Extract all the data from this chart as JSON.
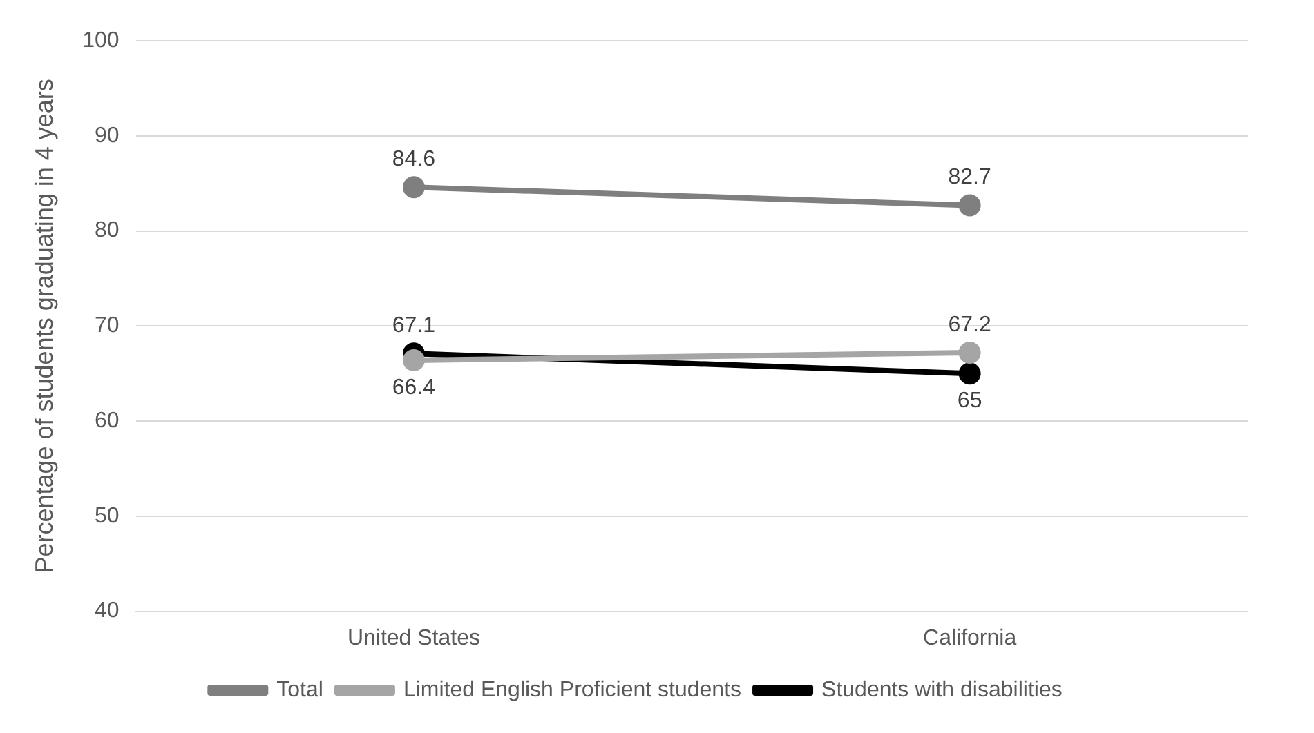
{
  "chart_data": {
    "type": "line",
    "ylabel": "Percentage of students graduating in 4 years",
    "categories": [
      "United States",
      "California"
    ],
    "series": [
      {
        "name": "Total",
        "color": "#7f7f7f",
        "values": [
          84.6,
          82.7
        ]
      },
      {
        "name": "Limited English Proficient students",
        "color": "#a5a5a5",
        "values": [
          66.4,
          67.2
        ]
      },
      {
        "name": "Students with disabilities",
        "color": "#000000",
        "values": [
          67.1,
          65
        ]
      }
    ],
    "ylim": [
      40,
      100
    ],
    "yticks": [
      40,
      50,
      60,
      70,
      80,
      90,
      100
    ],
    "grid": "y",
    "legend": "bottom",
    "marker": "circle",
    "line_style": "solid",
    "data_labels": true
  }
}
